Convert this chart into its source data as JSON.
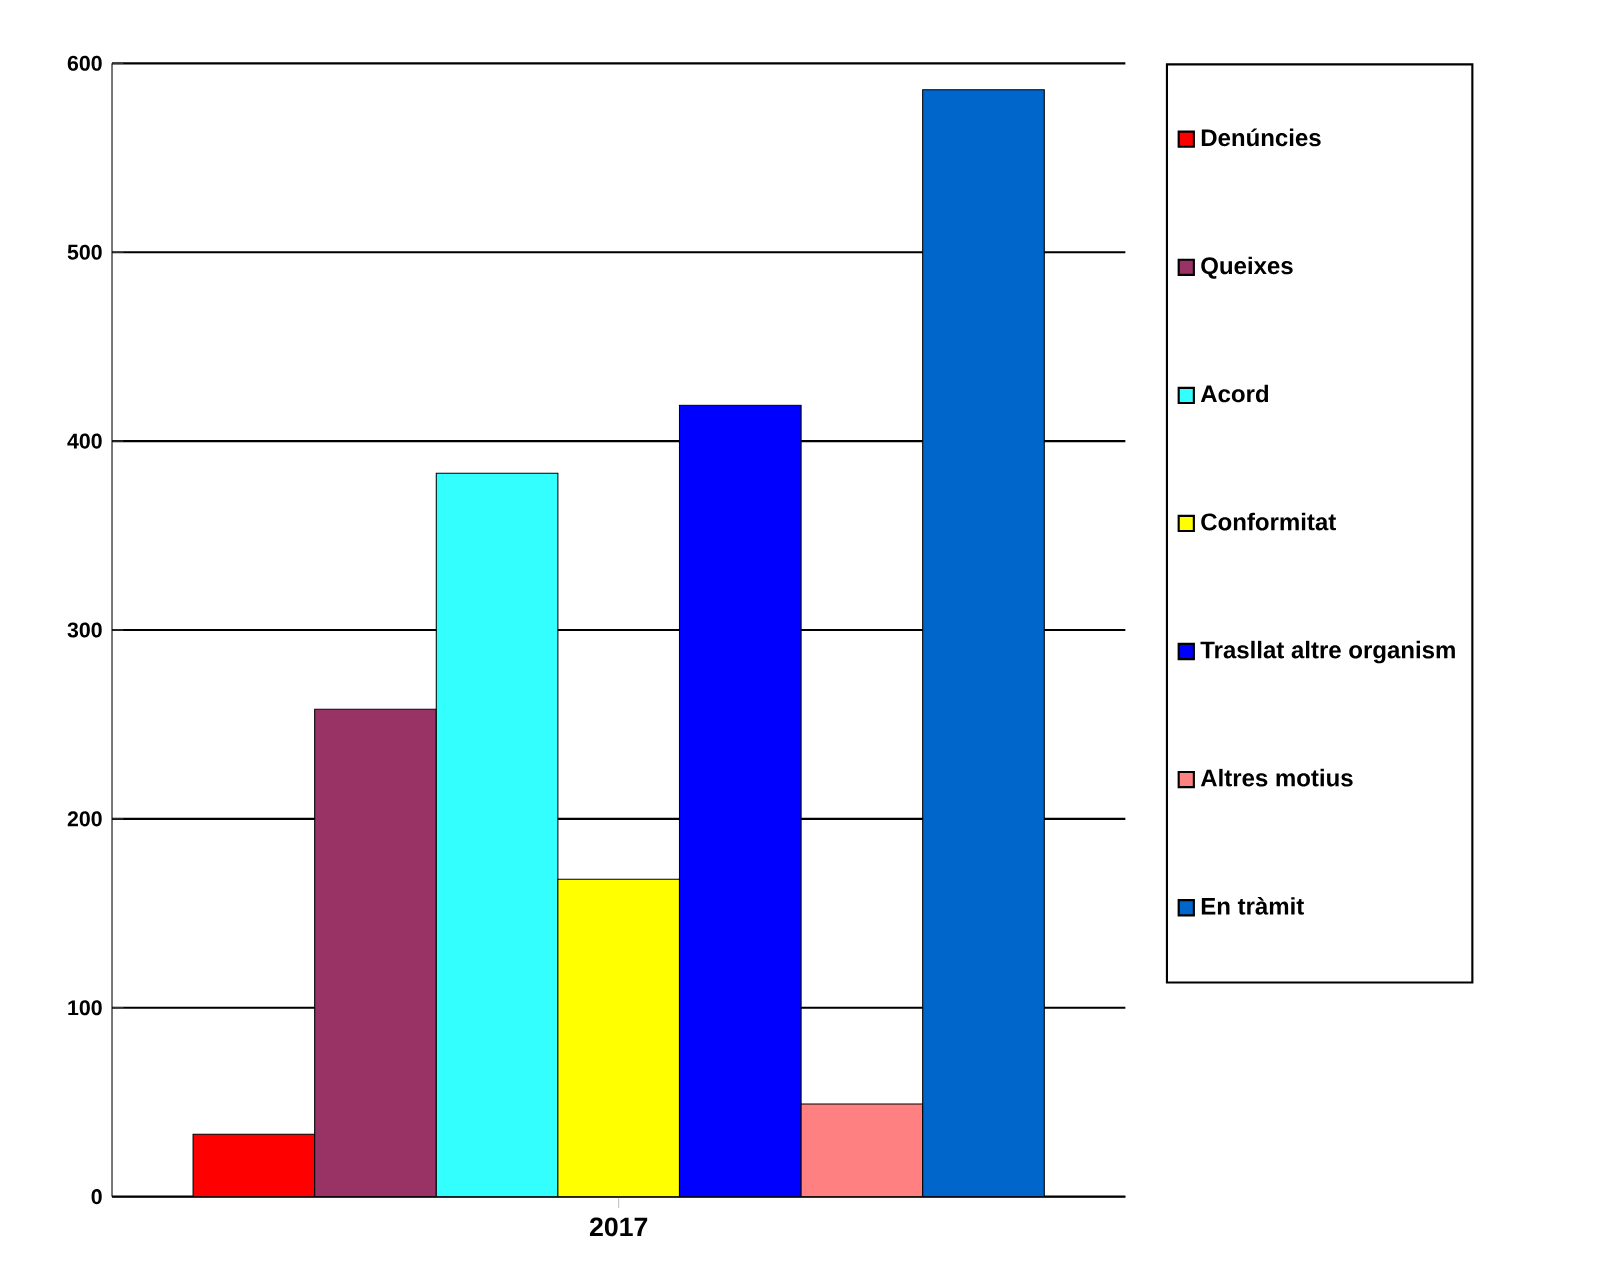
{
  "chart_data": {
    "type": "bar",
    "categories": [
      "2017"
    ],
    "series": [
      {
        "name": "Denúncies",
        "color": "#ff0000",
        "values": [
          33
        ]
      },
      {
        "name": "Queixes",
        "color": "#993366",
        "values": [
          258
        ]
      },
      {
        "name": "Acord",
        "color": "#33ffff",
        "values": [
          383
        ]
      },
      {
        "name": "Conformitat",
        "color": "#ffff00",
        "values": [
          168
        ]
      },
      {
        "name": "Trasllat altre organism",
        "color": "#0000ff",
        "values": [
          419
        ]
      },
      {
        "name": "Altres motius",
        "color": "#ff8080",
        "values": [
          49
        ]
      },
      {
        "name": "En tràmit",
        "color": "#0066cc",
        "values": [
          586
        ]
      }
    ],
    "ylim": [
      0,
      600
    ],
    "yticks": [
      0,
      100,
      200,
      300,
      400,
      500,
      600
    ],
    "grid": "y",
    "legend": "right"
  }
}
